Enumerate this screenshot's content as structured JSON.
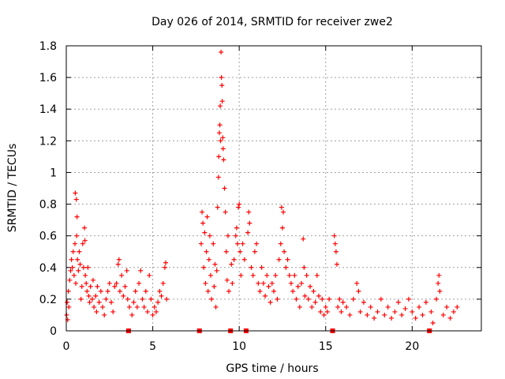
{
  "chart_data": {
    "type": "scatter",
    "title": "Day 026 of 2014, SRMTID for receiver zwe2",
    "xlabel": "GPS time / hours",
    "ylabel": "SRMTID / TECUs",
    "xlim": [
      0,
      24
    ],
    "ylim": [
      0,
      1.8
    ],
    "x_ticks": [
      0,
      5,
      10,
      15,
      20
    ],
    "x_tick_labels": [
      "0",
      "5",
      "10",
      "15",
      "20"
    ],
    "y_ticks": [
      0,
      0.2,
      0.4,
      0.6,
      0.8,
      1,
      1.2,
      1.4,
      1.6,
      1.8
    ],
    "y_tick_labels": [
      "0",
      "0.2",
      "0.4",
      "0.6",
      "0.8",
      "1",
      "1.2",
      "1.4",
      "1.6",
      "1.8"
    ],
    "grid": true,
    "marker": "+",
    "color": "#ff0000",
    "gap_markers": [
      3.6,
      7.7,
      9.5,
      10.4,
      15.4,
      21.0
    ],
    "series": [
      {
        "name": "SRMTID",
        "points": [
          [
            0.02,
            0.1
          ],
          [
            0.05,
            0.18
          ],
          [
            0.08,
            0.07
          ],
          [
            0.12,
            0.25
          ],
          [
            0.15,
            0.15
          ],
          [
            0.2,
            0.32
          ],
          [
            0.25,
            0.38
          ],
          [
            0.3,
            0.45
          ],
          [
            0.35,
            0.4
          ],
          [
            0.4,
            0.5
          ],
          [
            0.45,
            0.35
          ],
          [
            0.5,
            0.55
          ],
          [
            0.52,
            0.87
          ],
          [
            0.55,
            0.3
          ],
          [
            0.58,
            0.83
          ],
          [
            0.6,
            0.6
          ],
          [
            0.62,
            0.72
          ],
          [
            0.65,
            0.45
          ],
          [
            0.7,
            0.38
          ],
          [
            0.75,
            0.5
          ],
          [
            0.8,
            0.42
          ],
          [
            0.85,
            0.2
          ],
          [
            0.9,
            0.28
          ],
          [
            0.95,
            0.55
          ],
          [
            1.0,
            0.4
          ],
          [
            1.05,
            0.65
          ],
          [
            1.08,
            0.57
          ],
          [
            1.1,
            0.35
          ],
          [
            1.15,
            0.3
          ],
          [
            1.2,
            0.25
          ],
          [
            1.25,
            0.4
          ],
          [
            1.3,
            0.22
          ],
          [
            1.35,
            0.18
          ],
          [
            1.4,
            0.28
          ],
          [
            1.5,
            0.2
          ],
          [
            1.55,
            0.32
          ],
          [
            1.6,
            0.15
          ],
          [
            1.7,
            0.22
          ],
          [
            1.75,
            0.12
          ],
          [
            1.8,
            0.28
          ],
          [
            1.9,
            0.18
          ],
          [
            2.0,
            0.25
          ],
          [
            2.1,
            0.15
          ],
          [
            2.2,
            0.1
          ],
          [
            2.3,
            0.2
          ],
          [
            2.4,
            0.25
          ],
          [
            2.5,
            0.3
          ],
          [
            2.6,
            0.18
          ],
          [
            2.7,
            0.12
          ],
          [
            2.8,
            0.28
          ],
          [
            2.9,
            0.3
          ],
          [
            3.0,
            0.42
          ],
          [
            3.05,
            0.45
          ],
          [
            3.1,
            0.25
          ],
          [
            3.2,
            0.35
          ],
          [
            3.3,
            0.22
          ],
          [
            3.4,
            0.28
          ],
          [
            3.5,
            0.38
          ],
          [
            3.55,
            0.2
          ],
          [
            3.65,
            0.15
          ],
          [
            3.8,
            0.1
          ],
          [
            3.9,
            0.18
          ],
          [
            4.0,
            0.25
          ],
          [
            4.1,
            0.15
          ],
          [
            4.2,
            0.3
          ],
          [
            4.3,
            0.38
          ],
          [
            4.4,
            0.2
          ],
          [
            4.5,
            0.15
          ],
          [
            4.6,
            0.25
          ],
          [
            4.7,
            0.12
          ],
          [
            4.8,
            0.35
          ],
          [
            4.9,
            0.2
          ],
          [
            5.0,
            0.1
          ],
          [
            5.1,
            0.15
          ],
          [
            5.2,
            0.12
          ],
          [
            5.3,
            0.18
          ],
          [
            5.4,
            0.25
          ],
          [
            5.5,
            0.22
          ],
          [
            5.6,
            0.3
          ],
          [
            5.7,
            0.4
          ],
          [
            5.75,
            0.43
          ],
          [
            5.8,
            0.2
          ],
          [
            7.8,
            0.55
          ],
          [
            7.85,
            0.75
          ],
          [
            7.9,
            0.68
          ],
          [
            7.95,
            0.4
          ],
          [
            8.0,
            0.62
          ],
          [
            8.05,
            0.3
          ],
          [
            8.1,
            0.5
          ],
          [
            8.15,
            0.72
          ],
          [
            8.2,
            0.25
          ],
          [
            8.25,
            0.45
          ],
          [
            8.3,
            0.6
          ],
          [
            8.35,
            0.35
          ],
          [
            8.4,
            0.2
          ],
          [
            8.5,
            0.55
          ],
          [
            8.55,
            0.28
          ],
          [
            8.6,
            0.42
          ],
          [
            8.65,
            0.15
          ],
          [
            8.7,
            0.38
          ],
          [
            8.75,
            0.78
          ],
          [
            8.8,
            0.97
          ],
          [
            8.82,
            1.1
          ],
          [
            8.85,
            1.25
          ],
          [
            8.88,
            1.3
          ],
          [
            8.9,
            1.42
          ],
          [
            8.92,
            1.2
          ],
          [
            8.95,
            1.76
          ],
          [
            8.97,
            1.6
          ],
          [
            9.0,
            1.55
          ],
          [
            9.02,
            1.45
          ],
          [
            9.05,
            1.22
          ],
          [
            9.07,
            1.15
          ],
          [
            9.1,
            1.08
          ],
          [
            9.15,
            0.9
          ],
          [
            9.2,
            0.75
          ],
          [
            9.25,
            0.5
          ],
          [
            9.3,
            0.32
          ],
          [
            9.35,
            0.6
          ],
          [
            9.4,
            0.25
          ],
          [
            9.55,
            0.42
          ],
          [
            9.6,
            0.3
          ],
          [
            9.7,
            0.45
          ],
          [
            9.8,
            0.6
          ],
          [
            9.85,
            0.65
          ],
          [
            9.9,
            0.55
          ],
          [
            9.95,
            0.78
          ],
          [
            10.0,
            0.8
          ],
          [
            10.05,
            0.5
          ],
          [
            10.1,
            0.35
          ],
          [
            10.2,
            0.55
          ],
          [
            10.3,
            0.45
          ],
          [
            10.5,
            0.62
          ],
          [
            10.55,
            0.75
          ],
          [
            10.6,
            0.68
          ],
          [
            10.7,
            0.4
          ],
          [
            10.8,
            0.35
          ],
          [
            10.9,
            0.5
          ],
          [
            11.0,
            0.55
          ],
          [
            11.1,
            0.3
          ],
          [
            11.2,
            0.25
          ],
          [
            11.3,
            0.4
          ],
          [
            11.4,
            0.3
          ],
          [
            11.5,
            0.22
          ],
          [
            11.6,
            0.35
          ],
          [
            11.7,
            0.28
          ],
          [
            11.8,
            0.18
          ],
          [
            11.9,
            0.3
          ],
          [
            12.0,
            0.25
          ],
          [
            12.1,
            0.35
          ],
          [
            12.2,
            0.2
          ],
          [
            12.3,
            0.45
          ],
          [
            12.4,
            0.55
          ],
          [
            12.45,
            0.78
          ],
          [
            12.5,
            0.65
          ],
          [
            12.55,
            0.75
          ],
          [
            12.6,
            0.5
          ],
          [
            12.7,
            0.4
          ],
          [
            12.8,
            0.45
          ],
          [
            12.9,
            0.35
          ],
          [
            13.0,
            0.3
          ],
          [
            13.1,
            0.25
          ],
          [
            13.2,
            0.35
          ],
          [
            13.3,
            0.2
          ],
          [
            13.4,
            0.28
          ],
          [
            13.5,
            0.15
          ],
          [
            13.6,
            0.3
          ],
          [
            13.7,
            0.58
          ],
          [
            13.75,
            0.4
          ],
          [
            13.8,
            0.22
          ],
          [
            13.9,
            0.35
          ],
          [
            14.0,
            0.2
          ],
          [
            14.1,
            0.28
          ],
          [
            14.2,
            0.15
          ],
          [
            14.3,
            0.25
          ],
          [
            14.4,
            0.18
          ],
          [
            14.5,
            0.35
          ],
          [
            14.6,
            0.22
          ],
          [
            14.7,
            0.12
          ],
          [
            14.8,
            0.2
          ],
          [
            14.9,
            0.1
          ],
          [
            15.0,
            0.15
          ],
          [
            15.1,
            0.12
          ],
          [
            15.2,
            0.2
          ],
          [
            15.5,
            0.6
          ],
          [
            15.55,
            0.55
          ],
          [
            15.6,
            0.5
          ],
          [
            15.65,
            0.42
          ],
          [
            15.7,
            0.15
          ],
          [
            15.8,
            0.2
          ],
          [
            15.9,
            0.12
          ],
          [
            16.0,
            0.18
          ],
          [
            16.2,
            0.15
          ],
          [
            16.4,
            0.1
          ],
          [
            16.6,
            0.2
          ],
          [
            16.8,
            0.3
          ],
          [
            16.9,
            0.25
          ],
          [
            17.0,
            0.12
          ],
          [
            17.2,
            0.18
          ],
          [
            17.4,
            0.1
          ],
          [
            17.6,
            0.15
          ],
          [
            17.8,
            0.08
          ],
          [
            18.0,
            0.12
          ],
          [
            18.2,
            0.2
          ],
          [
            18.4,
            0.1
          ],
          [
            18.6,
            0.15
          ],
          [
            18.8,
            0.08
          ],
          [
            19.0,
            0.12
          ],
          [
            19.2,
            0.18
          ],
          [
            19.4,
            0.1
          ],
          [
            19.6,
            0.14
          ],
          [
            19.8,
            0.2
          ],
          [
            20.0,
            0.12
          ],
          [
            20.2,
            0.08
          ],
          [
            20.4,
            0.15
          ],
          [
            20.6,
            0.1
          ],
          [
            20.8,
            0.18
          ],
          [
            21.1,
            0.12
          ],
          [
            21.2,
            0.05
          ],
          [
            21.4,
            0.2
          ],
          [
            21.5,
            0.3
          ],
          [
            21.55,
            0.35
          ],
          [
            21.6,
            0.25
          ],
          [
            21.8,
            0.1
          ],
          [
            22.0,
            0.15
          ],
          [
            22.2,
            0.08
          ],
          [
            22.4,
            0.12
          ],
          [
            22.6,
            0.15
          ]
        ]
      }
    ]
  }
}
